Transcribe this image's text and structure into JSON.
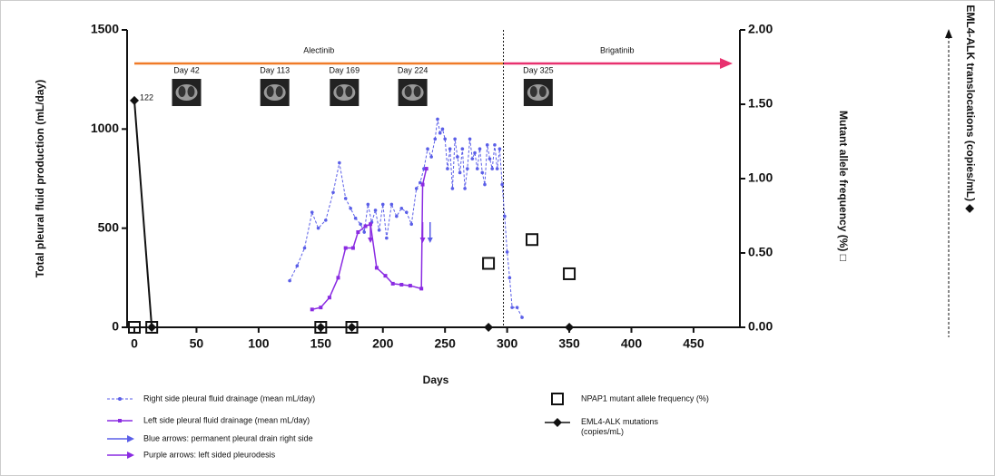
{
  "chart_data": {
    "type": "line",
    "x_label": "Days",
    "y_label": "Total pleural fluid production (mL/day)",
    "y2_label": "Mutant allele frequency (%) □",
    "y3_label": "EML4-ALK translocations (copies/mL) ◆",
    "xlim": [
      0,
      480
    ],
    "xticks": [
      0,
      50,
      100,
      150,
      200,
      250,
      300,
      350,
      400,
      450
    ],
    "ylim": [
      0,
      1500
    ],
    "yticks": [
      0,
      500,
      1000,
      1500
    ],
    "y2lim": [
      0,
      2
    ],
    "y2ticks": [
      {
        "value": 0,
        "label": "0.00"
      },
      {
        "value": 0.5,
        "label": "0.50"
      },
      {
        "value": 1,
        "label": "1.00"
      },
      {
        "value": 1.5,
        "label": "1.50"
      },
      {
        "value": 2,
        "label": "2.00"
      }
    ],
    "y3lim": [
      0,
      160
    ],
    "switch_day": 297,
    "treatments": [
      {
        "name": "Alectinib",
        "start": 0,
        "end": 297,
        "color": "#f07b28"
      },
      {
        "name": "Brigatinib",
        "start": 297,
        "end": 480,
        "color": "#e8316f"
      }
    ],
    "scans": [
      {
        "label": "Day 42",
        "day": 42
      },
      {
        "label": "Day 113",
        "day": 113
      },
      {
        "label": "Day 169",
        "day": 169
      },
      {
        "label": "Day 224",
        "day": 224
      },
      {
        "label": "Day 325",
        "day": 325
      }
    ],
    "series": [
      {
        "name": "Right side pleural fluid drainage (mean mL/day)",
        "color": "#5a5ee8",
        "style": "dashed",
        "marker": "circle",
        "x": [
          125,
          131,
          137,
          143,
          148,
          154,
          160,
          165,
          170,
          174,
          178,
          182,
          185,
          188,
          191,
          194,
          197,
          200,
          203,
          207,
          211,
          215,
          219,
          223,
          227,
          230,
          233,
          236,
          239,
          242,
          244,
          246,
          248,
          250,
          252,
          254,
          256,
          258,
          260,
          262,
          264,
          266,
          268,
          270,
          272,
          274,
          276,
          278,
          280,
          282,
          284,
          286,
          288,
          290,
          292,
          294,
          296,
          298,
          300,
          302,
          304,
          308,
          312
        ],
        "values": [
          235,
          310,
          400,
          580,
          500,
          540,
          680,
          830,
          650,
          600,
          550,
          520,
          480,
          620,
          530,
          590,
          490,
          620,
          450,
          620,
          560,
          600,
          580,
          520,
          700,
          730,
          800,
          900,
          860,
          950,
          1050,
          980,
          1000,
          950,
          800,
          900,
          700,
          950,
          860,
          780,
          900,
          700,
          800,
          950,
          850,
          880,
          800,
          900,
          780,
          720,
          920,
          850,
          800,
          920,
          800,
          900,
          720,
          560,
          380,
          250,
          100,
          100,
          50
        ]
      },
      {
        "name": "Left side pleural fluid drainage (mean mL/day)",
        "color": "#8a2be2",
        "style": "solid",
        "marker": "square",
        "x": [
          143,
          150,
          157,
          164,
          170,
          176,
          180,
          186,
          190,
          195,
          202,
          208,
          215,
          222,
          231,
          232,
          235
        ],
        "values": [
          90,
          100,
          150,
          250,
          400,
          400,
          480,
          510,
          520,
          300,
          260,
          220,
          215,
          210,
          195,
          720,
          800
        ]
      },
      {
        "name": "NPAP1 mutant allele frequency (%)",
        "color": "#111111",
        "marker": "open-square",
        "axis": "y2",
        "x": [
          0,
          14,
          150,
          175,
          285,
          320,
          350
        ],
        "values": [
          0,
          0,
          0,
          0,
          0.43,
          0.59,
          0.36
        ]
      },
      {
        "name": "EML4-ALK mutations (copies/mL)",
        "color": "#111111",
        "marker": "diamond",
        "axis": "y3",
        "x": [
          0,
          14,
          150,
          175,
          285,
          350
        ],
        "values": [
          122,
          0,
          0,
          0,
          0,
          0
        ]
      }
    ],
    "arrows": [
      {
        "label": "Blue arrows: permanent pleural drain right side",
        "color": "#5a5ee8",
        "days": [
          238
        ]
      },
      {
        "label": "Purple arrows: left sided pleurodesis",
        "color": "#8a2be2",
        "days": [
          190,
          232
        ]
      }
    ]
  }
}
